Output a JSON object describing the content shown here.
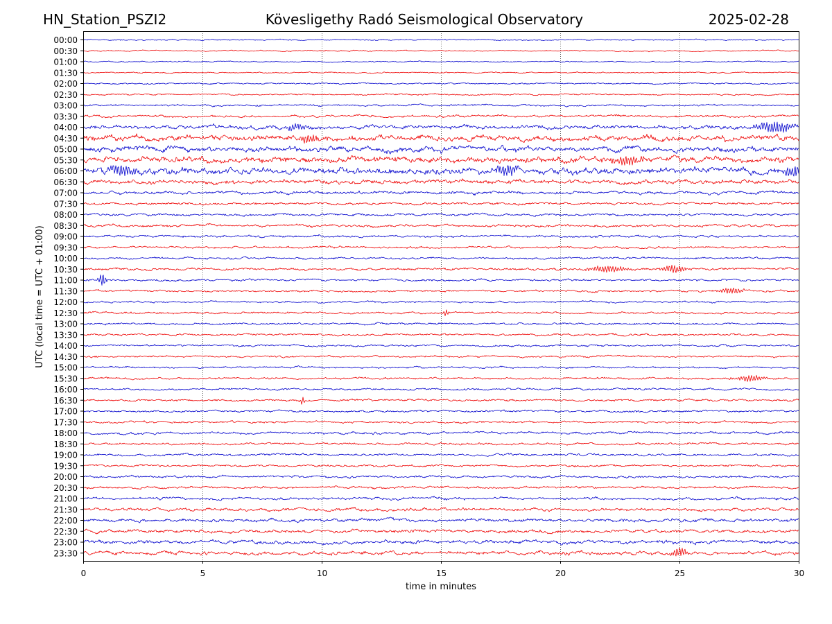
{
  "header": {
    "station": "HN_Station_PSZI2",
    "observatory": "Kövesligethy Radó Seismological Observatory",
    "date": "2025-02-28"
  },
  "chart_data": {
    "type": "line",
    "title": "Kövesligethy Radó Seismological Observatory",
    "xlabel": "time in minutes",
    "ylabel": "UTC (local time = UTC + 01:00)",
    "xlim": [
      0,
      30
    ],
    "x_ticks": [
      "0",
      "5",
      "10",
      "15",
      "20",
      "25",
      "30"
    ],
    "x_grid_minutes": [
      5,
      10,
      15,
      20,
      25
    ],
    "grid": "vertical dotted",
    "colors": [
      "#0000cc",
      "#ee0000"
    ],
    "rows": [
      "00:00",
      "00:30",
      "01:00",
      "01:30",
      "02:00",
      "02:30",
      "03:00",
      "03:30",
      "04:00",
      "04:30",
      "05:00",
      "05:30",
      "06:00",
      "06:30",
      "07:00",
      "07:30",
      "08:00",
      "08:30",
      "09:00",
      "09:30",
      "10:00",
      "10:30",
      "11:00",
      "11:30",
      "12:00",
      "12:30",
      "13:00",
      "13:30",
      "14:00",
      "14:30",
      "15:00",
      "15:30",
      "16:00",
      "16:30",
      "17:00",
      "17:30",
      "18:00",
      "18:30",
      "19:00",
      "19:30",
      "20:00",
      "20:30",
      "21:00",
      "21:30",
      "22:00",
      "22:30",
      "23:00",
      "23:30"
    ],
    "noise_level": [
      1.0,
      1.0,
      1.0,
      1.0,
      1.2,
      1.3,
      1.6,
      2.0,
      3.2,
      4.8,
      4.6,
      5.0,
      5.4,
      3.6,
      2.6,
      2.0,
      2.0,
      2.2,
      2.0,
      1.8,
      1.7,
      2.0,
      1.8,
      1.7,
      1.6,
      1.7,
      1.6,
      1.7,
      1.7,
      1.6,
      1.6,
      1.6,
      1.7,
      1.8,
      1.8,
      1.8,
      2.0,
      1.8,
      1.9,
      1.8,
      1.9,
      2.0,
      2.2,
      2.6,
      2.8,
      2.8,
      3.0,
      3.0
    ],
    "events": [
      {
        "row": 8,
        "minute": 29.0,
        "amp": 7,
        "dur": 0.8
      },
      {
        "row": 8,
        "minute": 9.0,
        "amp": 4,
        "dur": 0.5
      },
      {
        "row": 9,
        "minute": 9.5,
        "amp": 5,
        "dur": 0.4
      },
      {
        "row": 12,
        "minute": 1.6,
        "amp": 7,
        "dur": 0.6
      },
      {
        "row": 12,
        "minute": 17.8,
        "amp": 7,
        "dur": 0.5
      },
      {
        "row": 12,
        "minute": 29.8,
        "amp": 8,
        "dur": 0.4
      },
      {
        "row": 11,
        "minute": 22.8,
        "amp": 6,
        "dur": 0.6
      },
      {
        "row": 21,
        "minute": 24.8,
        "amp": 5,
        "dur": 0.5
      },
      {
        "row": 21,
        "minute": 22.0,
        "amp": 4,
        "dur": 0.8
      },
      {
        "row": 22,
        "minute": 0.8,
        "amp": 9,
        "dur": 0.15
      },
      {
        "row": 23,
        "minute": 27.2,
        "amp": 4,
        "dur": 0.5
      },
      {
        "row": 31,
        "minute": 28.0,
        "amp": 4,
        "dur": 0.6
      },
      {
        "row": 33,
        "minute": 9.2,
        "amp": 5,
        "dur": 0.1
      },
      {
        "row": 25,
        "minute": 15.2,
        "amp": 5,
        "dur": 0.1
      },
      {
        "row": 47,
        "minute": 25.0,
        "amp": 6,
        "dur": 0.3
      }
    ]
  }
}
